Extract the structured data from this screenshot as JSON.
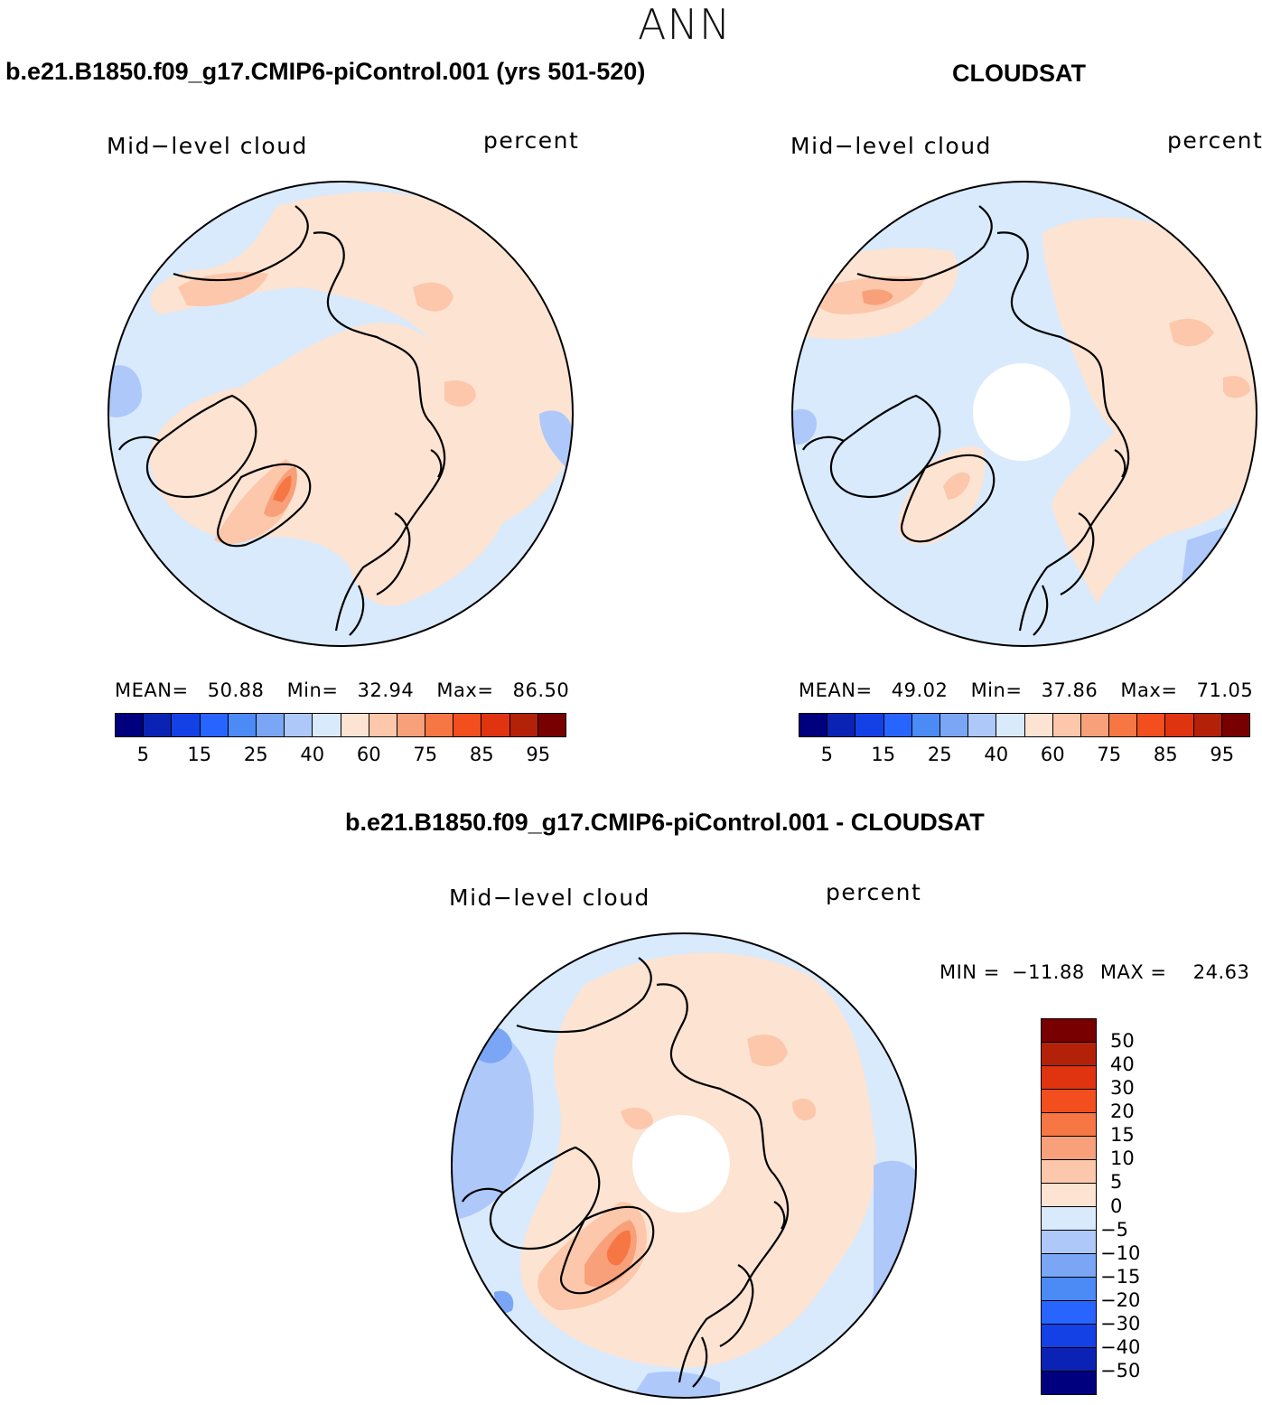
{
  "figure": {
    "season": "ANN",
    "panels": [
      {
        "id": "model",
        "title": "b.e21.B1850.f09_g17.CMIP6-piControl.001 (yrs 501-520)",
        "variable": "Mid−level cloud",
        "units": "percent",
        "stats": {
          "mean_label": "MEAN=",
          "mean": "50.88",
          "min_label": "Min=",
          "min": "32.94",
          "max_label": "Max=",
          "max": "86.50"
        }
      },
      {
        "id": "obs",
        "title": "CLOUDSAT",
        "variable": "Mid−level cloud",
        "units": "percent",
        "stats": {
          "mean_label": "MEAN=",
          "mean": "49.02",
          "min_label": "Min=",
          "min": "37.86",
          "max_label": "Max=",
          "max": "71.05"
        }
      },
      {
        "id": "diff",
        "title": "b.e21.B1850.f09_g17.CMIP6-piControl.001 - CLOUDSAT",
        "variable": "Mid−level cloud",
        "units": "percent",
        "stats": {
          "min_label": "MIN =",
          "min": "−11.88",
          "max_label": "MAX =",
          "max": "24.63"
        }
      }
    ],
    "colorbar_abs": {
      "colors": [
        "#00007f",
        "#0a23b4",
        "#1441e6",
        "#2864ff",
        "#4c8af5",
        "#7aa6f5",
        "#aec8fa",
        "#d9eafc",
        "#fde3d2",
        "#fcc7ab",
        "#f8a07a",
        "#f67744",
        "#f24e1e",
        "#e03411",
        "#b42109",
        "#780000"
      ],
      "tick_labels": [
        "5",
        "15",
        "25",
        "40",
        "60",
        "75",
        "85",
        "95"
      ]
    },
    "colorbar_diff": {
      "colors": [
        "#780000",
        "#b42109",
        "#e03411",
        "#f24e1e",
        "#f67744",
        "#f8a07a",
        "#fcc7ab",
        "#fde3d2",
        "#d9eafc",
        "#aec8fa",
        "#7aa6f5",
        "#4c8af5",
        "#2864ff",
        "#1441e6",
        "#0a23b4",
        "#00007f"
      ],
      "tick_labels": [
        "50",
        "40",
        "30",
        "20",
        "15",
        "10",
        "5",
        "0",
        "−5",
        "−10",
        "−15",
        "−20",
        "−30",
        "−40",
        "−50"
      ]
    }
  }
}
